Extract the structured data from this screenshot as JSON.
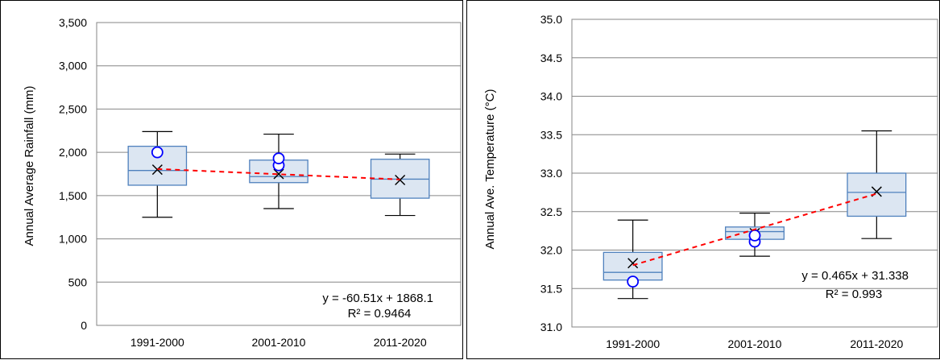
{
  "chart_data": [
    {
      "type": "box",
      "title": "",
      "xlabel": "",
      "ylabel": "Annual Average Rainfall (mm)",
      "ylim": [
        0,
        3500
      ],
      "yticks": [
        0,
        500,
        1000,
        1500,
        2000,
        2500,
        3000,
        3500
      ],
      "ytick_labels": [
        "0",
        "500",
        "1,000",
        "1,500",
        "2,000",
        "2,500",
        "3,000",
        "3,500"
      ],
      "categories": [
        "1991-2000",
        "2001-2010",
        "2011-2020"
      ],
      "grid": "horizontal",
      "boxes": [
        {
          "min": 1250,
          "q1": 1620,
          "median": 1790,
          "q3": 2070,
          "max": 2240,
          "mean": 1800,
          "outliers": [
            2000
          ]
        },
        {
          "min": 1350,
          "q1": 1650,
          "median": 1720,
          "q3": 1910,
          "max": 2210,
          "mean": 1750,
          "outliers": [
            1850,
            1930
          ]
        },
        {
          "min": 1270,
          "q1": 1470,
          "median": 1690,
          "q3": 1920,
          "max": 1980,
          "mean": 1680,
          "outliers": []
        }
      ],
      "trendline": {
        "slope": -60.51,
        "intercept": 1868.1
      },
      "annotations": [
        "y = -60.51x + 1868.1",
        "R² = 0.9464"
      ]
    },
    {
      "type": "box",
      "title": "",
      "xlabel": "",
      "ylabel": "Annual Ave. Temperature (°C)",
      "ylim": [
        31.0,
        35.0
      ],
      "yticks": [
        31.0,
        31.5,
        32.0,
        32.5,
        33.0,
        33.5,
        34.0,
        34.5,
        35.0
      ],
      "ytick_labels": [
        "31.0",
        "31.5",
        "32.0",
        "32.5",
        "33.0",
        "33.5",
        "34.0",
        "34.5",
        "35.0"
      ],
      "categories": [
        "1991-2000",
        "2001-2010",
        "2011-2020"
      ],
      "grid": "horizontal",
      "boxes": [
        {
          "min": 31.37,
          "q1": 31.61,
          "median": 31.71,
          "q3": 31.97,
          "max": 32.39,
          "mean": 31.83,
          "outliers": [
            31.59
          ]
        },
        {
          "min": 31.92,
          "q1": 32.14,
          "median": 32.24,
          "q3": 32.3,
          "max": 32.48,
          "mean": 32.22,
          "outliers": [
            32.11,
            32.19
          ]
        },
        {
          "min": 32.15,
          "q1": 32.44,
          "median": 32.75,
          "q3": 33.0,
          "max": 33.55,
          "mean": 32.76,
          "outliers": []
        }
      ],
      "trendline": {
        "slope": 0.465,
        "intercept": 31.338
      },
      "annotations": [
        "y = 0.465x + 31.338",
        "R² = 0.993"
      ]
    }
  ],
  "colors": {
    "box_fill": "#dce6f2",
    "box_stroke": "#4f81bd",
    "trend": "#ff0000",
    "outlier": "#0000ff",
    "grid": "#868686"
  }
}
